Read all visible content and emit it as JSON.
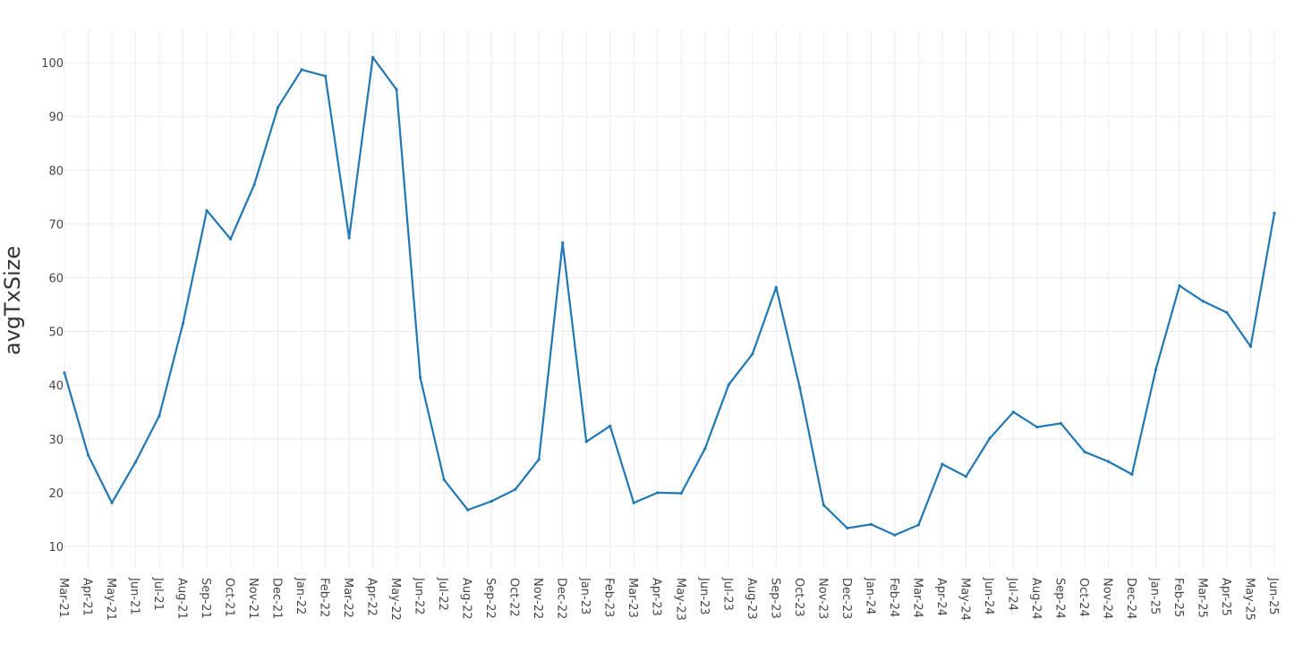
{
  "chart_data": {
    "type": "line",
    "title": "",
    "xlabel": "",
    "ylabel": "avgTxSize",
    "ylim": [
      6,
      106
    ],
    "yticks": [
      10,
      20,
      30,
      40,
      50,
      60,
      70,
      80,
      90,
      100
    ],
    "grid": true,
    "colors": {
      "series": "#1f77b4",
      "grid": "#ebebeb",
      "text": "#444444"
    },
    "x": [
      "Mar-21",
      "Apr-21",
      "May-21",
      "Jun-21",
      "Jul-21",
      "Aug-21",
      "Sep-21",
      "Oct-21",
      "Nov-21",
      "Dec-21",
      "Jan-22",
      "Feb-22",
      "Mar-22",
      "Apr-22",
      "May-22",
      "Jun-22",
      "Jul-22",
      "Aug-22",
      "Sep-22",
      "Oct-22",
      "Nov-22",
      "Dec-22",
      "Jan-23",
      "Feb-23",
      "Mar-23",
      "Apr-23",
      "May-23",
      "Jun-23",
      "Jul-23",
      "Aug-23",
      "Sep-23",
      "Oct-23",
      "Nov-23",
      "Dec-23",
      "Jan-24",
      "Feb-24",
      "Mar-24",
      "Apr-24",
      "May-24",
      "Jun-24",
      "Jul-24",
      "Aug-24",
      "Sep-24",
      "Oct-24",
      "Nov-24",
      "Dec-24",
      "Jan-25",
      "Feb-25",
      "Mar-25",
      "Apr-25",
      "May-25",
      "Jun-25"
    ],
    "series": [
      {
        "values": [
          42.3,
          27.0,
          18.1,
          25.7,
          34.3,
          51.5,
          72.5,
          67.2,
          77.3,
          91.7,
          98.7,
          97.5,
          67.4,
          101.0,
          95.0,
          41.4,
          22.4,
          16.8,
          18.4,
          20.6,
          26.2,
          66.5,
          29.5,
          32.4,
          18.1,
          20.0,
          19.9,
          28.2,
          40.1,
          45.8,
          58.2,
          39.5,
          17.7,
          13.4,
          14.1,
          12.1,
          14.0,
          25.3,
          23.0,
          30.1,
          35.0,
          32.2,
          32.9,
          27.6,
          25.8,
          23.4,
          42.9,
          58.5,
          55.6,
          53.5,
          47.2,
          72.0
        ]
      }
    ]
  }
}
